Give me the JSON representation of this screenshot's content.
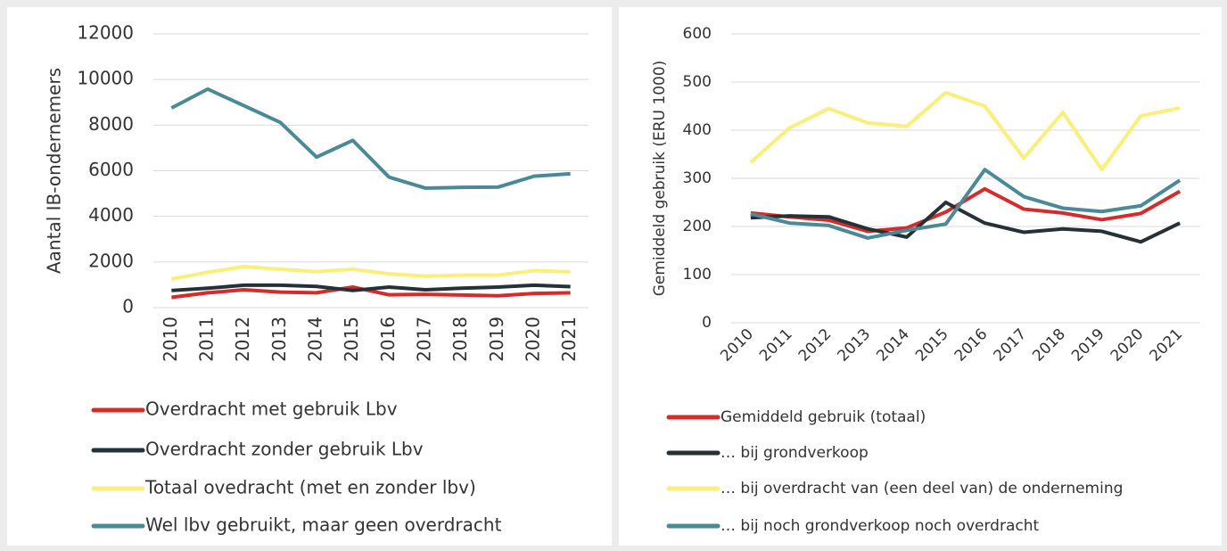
{
  "chart_data": [
    {
      "type": "line",
      "y_label": "Aantal IB-ondernemers",
      "categories": [
        "2010",
        "2011",
        "2012",
        "2013",
        "2014",
        "2015",
        "2016",
        "2017",
        "2018",
        "2019",
        "2020",
        "2021"
      ],
      "ylim": [
        0,
        12000
      ],
      "yticks": [
        0,
        2000,
        4000,
        6000,
        8000,
        10000,
        12000
      ],
      "grid": true,
      "series": [
        {
          "name": "Overdracht met gebruik Lbv",
          "color": "#d62b2b",
          "values": [
            450,
            650,
            780,
            680,
            650,
            900,
            560,
            580,
            550,
            520,
            620,
            650
          ]
        },
        {
          "name": "Overdracht zonder gebruik Lbv",
          "color": "#243238",
          "values": [
            750,
            850,
            980,
            980,
            930,
            750,
            900,
            780,
            850,
            900,
            980,
            920
          ]
        },
        {
          "name": "Totaal ovedracht (met en zonder lbv)",
          "color": "#f9ef7a",
          "values": [
            1250,
            1550,
            1800,
            1680,
            1580,
            1680,
            1480,
            1380,
            1420,
            1420,
            1620,
            1570
          ]
        },
        {
          "name": "Wel lbv gebruikt, maar geen overdracht",
          "color": "#4a8a97",
          "values": [
            8750,
            9580,
            8850,
            8120,
            6600,
            7330,
            5720,
            5240,
            5270,
            5280,
            5760,
            5870
          ]
        }
      ]
    },
    {
      "type": "line",
      "y_label": "Gemiddeld gebruik (ERU 1000)",
      "categories": [
        "2010",
        "2011",
        "2012",
        "2013",
        "2014",
        "2015",
        "2016",
        "2017",
        "2018",
        "2019",
        "2020",
        "2021"
      ],
      "ylim": [
        0,
        600
      ],
      "yticks": [
        0,
        100,
        200,
        300,
        400,
        500,
        600
      ],
      "grid": true,
      "series": [
        {
          "name": "Gemiddeld gebruik (totaal)",
          "color": "#d62b2b",
          "values": [
            228,
            220,
            213,
            190,
            197,
            230,
            278,
            236,
            228,
            214,
            227,
            273
          ]
        },
        {
          "name": "… bij grondverkoop",
          "color": "#243238",
          "values": [
            218,
            222,
            220,
            195,
            178,
            250,
            207,
            188,
            195,
            190,
            168,
            207
          ]
        },
        {
          "name": "… bij overdracht van (een deel van) de onderneming",
          "color": "#f9ef7a",
          "values": [
            333,
            405,
            445,
            415,
            408,
            478,
            450,
            342,
            437,
            318,
            430,
            446
          ]
        },
        {
          "name": "… bij noch grondverkoop noch overdracht",
          "color": "#4a8a97",
          "values": [
            226,
            207,
            202,
            176,
            192,
            205,
            318,
            262,
            238,
            231,
            243,
            296
          ]
        }
      ]
    }
  ]
}
